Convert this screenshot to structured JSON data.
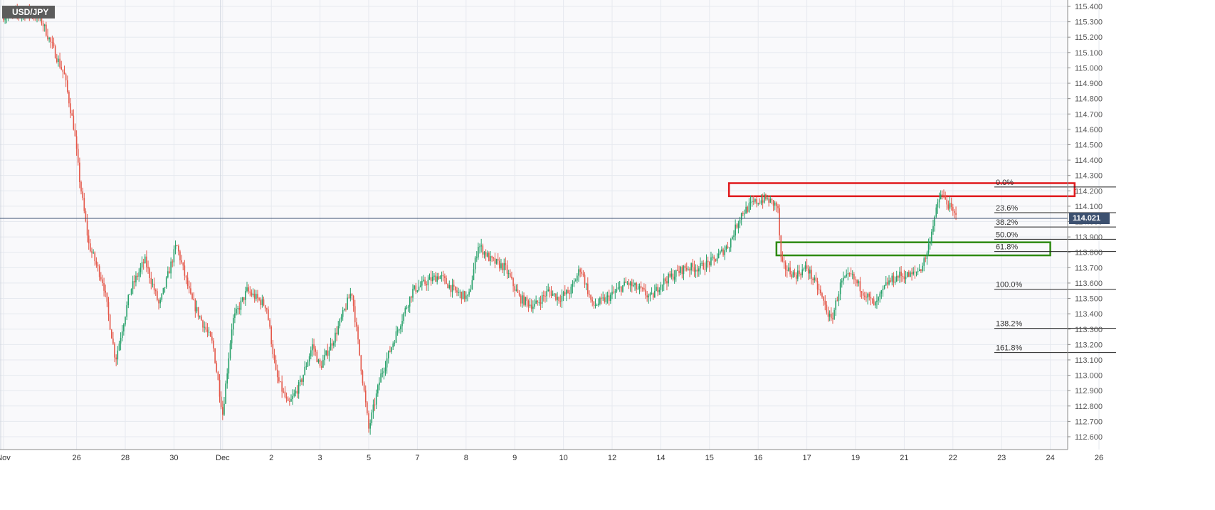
{
  "symbol": "USD/JPY",
  "colors": {
    "bull": "#26a069",
    "bear": "#e4584a",
    "grid": "#e6e9ef",
    "axis_text": "#555555",
    "last_price_line": "#3d5170",
    "resistance_box": "#e0191c",
    "support_box": "#2e8a12"
  },
  "chart_data": {
    "type": "candlestick",
    "title": "USD/JPY",
    "last_price": "114.021",
    "last_price_value": 114.021,
    "ylim": [
      112.6,
      115.4
    ],
    "y_ticks": [
      "115.400",
      "115.300",
      "115.200",
      "115.100",
      "115.000",
      "114.900",
      "114.800",
      "114.700",
      "114.600",
      "114.500",
      "114.400",
      "114.300",
      "114.200",
      "114.100",
      "114.000",
      "113.900",
      "113.800",
      "113.700",
      "113.600",
      "113.500",
      "113.400",
      "113.300",
      "113.200",
      "113.100",
      "113.000",
      "112.900",
      "112.800",
      "112.700",
      "112.600"
    ],
    "x_ticks": [
      "Nov",
      "26",
      "28",
      "30",
      "Dec",
      "2",
      "3",
      "5",
      "7",
      "8",
      "9",
      "10",
      "12",
      "14",
      "15",
      "16",
      "17",
      "19",
      "21",
      "22",
      "23",
      "24",
      "26"
    ],
    "x_tick_index": [
      0,
      3,
      5,
      7,
      9,
      11,
      13,
      15,
      17,
      19,
      21,
      23,
      25,
      27,
      29,
      31,
      33,
      35,
      37,
      39,
      41,
      43,
      45
    ],
    "period_separators": [
      0,
      9
    ],
    "grid": true,
    "candles_per_session": 16,
    "anchors": [
      [
        0,
        115.34
      ],
      [
        1,
        115.36
      ],
      [
        1.5,
        115.33
      ],
      [
        2.5,
        114.95
      ],
      [
        2.9,
        114.6
      ],
      [
        3.1,
        114.3
      ],
      [
        3.5,
        113.85
      ],
      [
        4.1,
        113.6
      ],
      [
        4.6,
        113.1
      ],
      [
        5.2,
        113.55
      ],
      [
        5.8,
        113.75
      ],
      [
        6.4,
        113.45
      ],
      [
        7.1,
        113.85
      ],
      [
        7.7,
        113.5
      ],
      [
        8.6,
        113.2
      ],
      [
        9.0,
        112.75
      ],
      [
        9.4,
        113.35
      ],
      [
        10.0,
        113.55
      ],
      [
        10.8,
        113.45
      ],
      [
        11.2,
        113.0
      ],
      [
        11.7,
        112.8
      ],
      [
        12.2,
        112.95
      ],
      [
        12.7,
        113.2
      ],
      [
        13.0,
        113.05
      ],
      [
        13.6,
        113.25
      ],
      [
        14.3,
        113.55
      ],
      [
        15.0,
        112.65
      ],
      [
        15.5,
        113.0
      ],
      [
        16.2,
        113.3
      ],
      [
        16.8,
        113.55
      ],
      [
        17.3,
        113.6
      ],
      [
        17.9,
        113.65
      ],
      [
        18.5,
        113.55
      ],
      [
        19.1,
        113.5
      ],
      [
        19.5,
        113.85
      ],
      [
        20.0,
        113.75
      ],
      [
        20.6,
        113.7
      ],
      [
        21.2,
        113.5
      ],
      [
        21.8,
        113.45
      ],
      [
        22.4,
        113.55
      ],
      [
        22.8,
        113.5
      ],
      [
        23.3,
        113.55
      ],
      [
        23.7,
        113.7
      ],
      [
        24.2,
        113.45
      ],
      [
        24.8,
        113.5
      ],
      [
        25.6,
        113.6
      ],
      [
        26.2,
        113.55
      ],
      [
        26.6,
        113.5
      ],
      [
        27.0,
        113.6
      ],
      [
        27.5,
        113.65
      ],
      [
        28.0,
        113.7
      ],
      [
        28.6,
        113.7
      ],
      [
        29.2,
        113.75
      ],
      [
        29.8,
        113.85
      ],
      [
        30.3,
        114.05
      ],
      [
        30.8,
        114.12
      ],
      [
        31.3,
        114.15
      ],
      [
        31.8,
        114.1
      ],
      [
        31.95,
        113.72
      ],
      [
        32.5,
        113.65
      ],
      [
        33.0,
        113.7
      ],
      [
        33.5,
        113.55
      ],
      [
        34.0,
        113.35
      ],
      [
        34.4,
        113.6
      ],
      [
        34.8,
        113.65
      ],
      [
        35.3,
        113.55
      ],
      [
        35.8,
        113.45
      ],
      [
        36.3,
        113.6
      ],
      [
        36.8,
        113.65
      ],
      [
        37.3,
        113.65
      ],
      [
        37.7,
        113.7
      ],
      [
        37.95,
        113.8
      ],
      [
        38.2,
        114.0
      ],
      [
        38.5,
        114.18
      ],
      [
        38.85,
        114.1
      ],
      [
        39.1,
        114.03
      ]
    ]
  },
  "fibonacci": {
    "levels": [
      {
        "label": "0.0%",
        "price": 114.225
      },
      {
        "label": "23.6%",
        "price": 114.058
      },
      {
        "label": "38.2%",
        "price": 113.965
      },
      {
        "label": "50.0%",
        "price": 113.885
      },
      {
        "label": "61.8%",
        "price": 113.805
      },
      {
        "label": "100.0%",
        "price": 113.56
      },
      {
        "label": "138.2%",
        "price": 113.305
      },
      {
        "label": "161.8%",
        "price": 113.148
      }
    ],
    "label_x_index": 40.7,
    "line_end_index": 45.7
  },
  "zones": [
    {
      "name": "resistance-box",
      "color": "#e0191c",
      "x_from": 29.8,
      "x_to": 44.0,
      "y_top": 114.25,
      "y_bottom": 114.165
    },
    {
      "name": "support-box",
      "color": "#2e8a12",
      "x_from": 31.75,
      "x_to": 43.0,
      "y_top": 113.865,
      "y_bottom": 113.78
    }
  ]
}
